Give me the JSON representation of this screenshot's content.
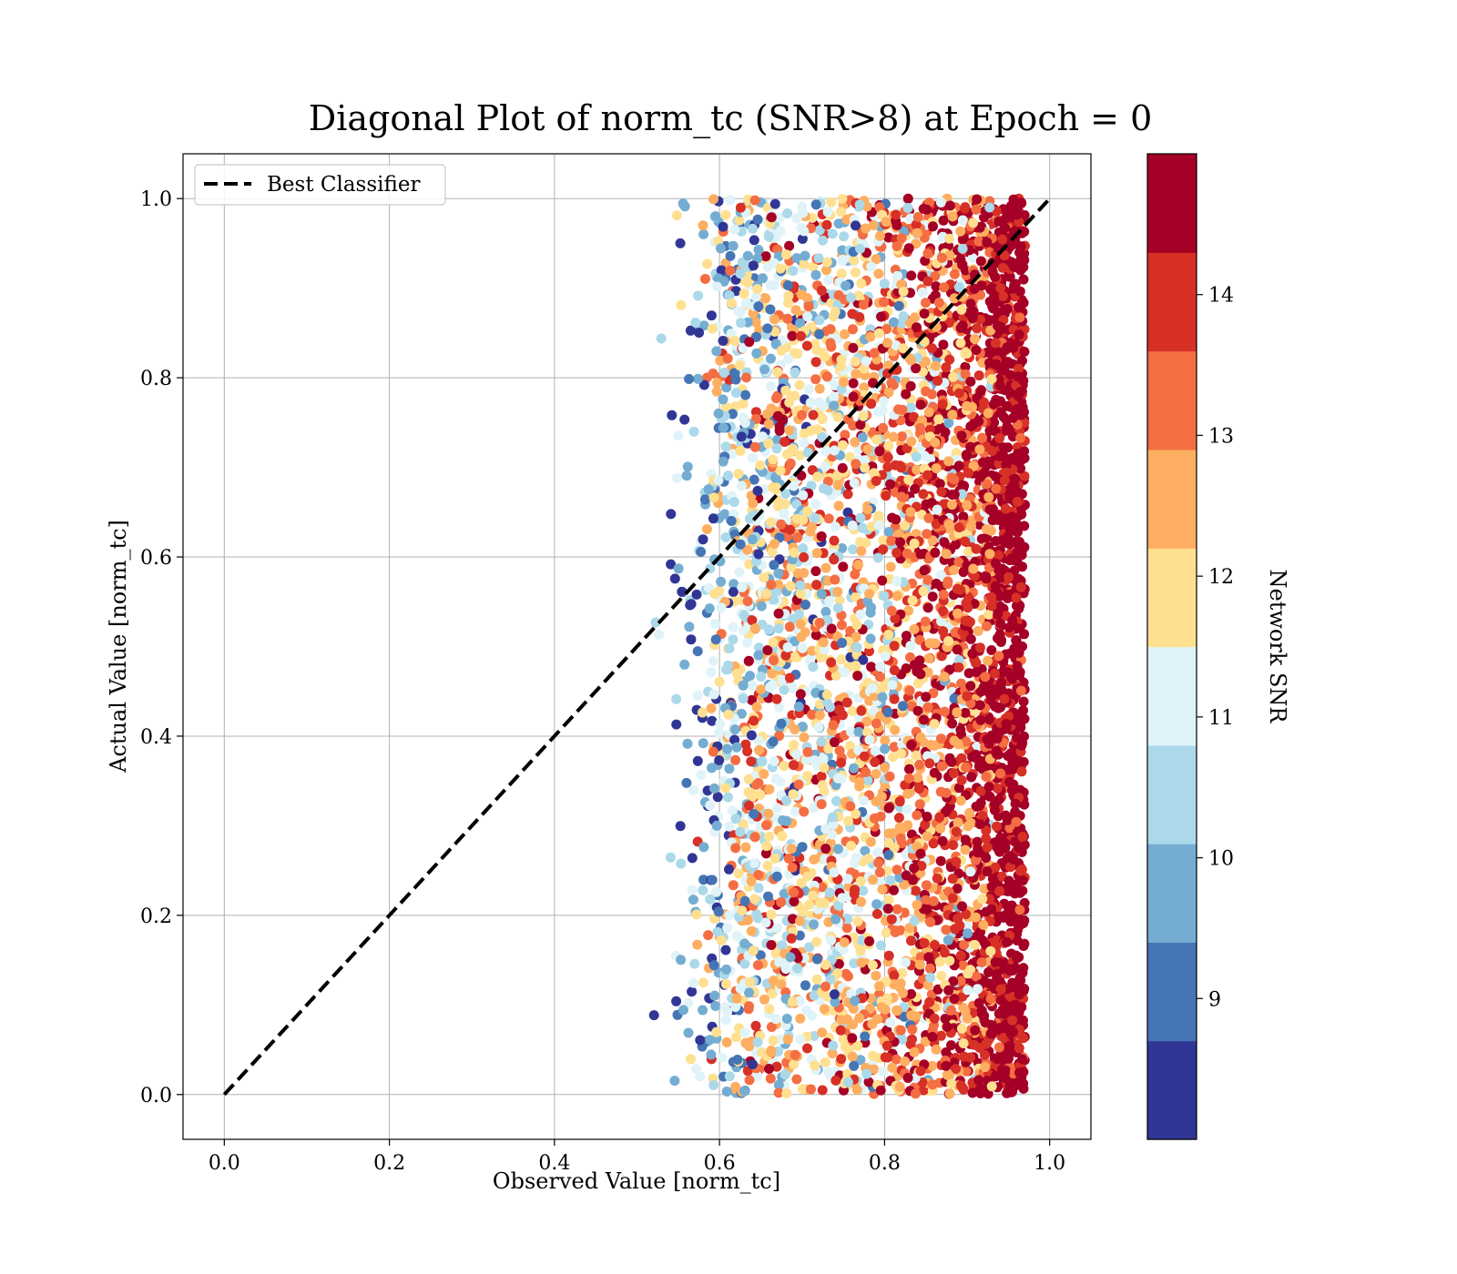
{
  "chart_data": {
    "type": "scatter",
    "title": "Diagonal Plot of norm_tc (SNR>8) at Epoch = 0",
    "xlabel": "Observed Value [norm_tc]",
    "ylabel": "Actual Value [norm_tc]",
    "xlim": [
      -0.05,
      1.05
    ],
    "ylim": [
      -0.05,
      1.05
    ],
    "xticks": [
      "0.0",
      "0.2",
      "0.4",
      "0.6",
      "0.8",
      "1.0"
    ],
    "yticks": [
      "0.0",
      "0.2",
      "0.4",
      "0.6",
      "0.8",
      "1.0"
    ],
    "grid": true,
    "legend": {
      "position": "upper-left",
      "entries": [
        {
          "label": "Best Classifier",
          "style": "dashed",
          "color": "#000000"
        }
      ]
    },
    "reference_line": {
      "name": "Best Classifier",
      "x": [
        0,
        1
      ],
      "y": [
        0,
        1
      ]
    },
    "points_description_range": {
      "x": [
        0.52,
        0.97
      ],
      "y": [
        0.0,
        1.0
      ]
    },
    "density_profile": {
      "x_centers": [
        0.54,
        0.58,
        0.62,
        0.66,
        0.7,
        0.74,
        0.78,
        0.82,
        0.86,
        0.9,
        0.94,
        0.96
      ],
      "relative_density": [
        0.03,
        0.35,
        0.85,
        0.95,
        1.0,
        1.0,
        1.0,
        1.1,
        1.3,
        1.6,
        2.2,
        2.5
      ]
    },
    "snr_by_x": {
      "x_centers": [
        0.56,
        0.6,
        0.65,
        0.7,
        0.75,
        0.8,
        0.85,
        0.9,
        0.95
      ],
      "mean_snr": [
        9.5,
        10.6,
        11.4,
        11.8,
        12.0,
        12.6,
        13.3,
        14.0,
        14.6
      ]
    },
    "colorbar": {
      "label": "Network SNR",
      "range": [
        8,
        15
      ],
      "levels": [
        8,
        8.7,
        9.4,
        10.1,
        10.8,
        11.5,
        12.2,
        12.9,
        13.6,
        14.3,
        15.0
      ],
      "colors": [
        "#313695",
        "#4575b4",
        "#74add1",
        "#abd9e9",
        "#e0f3f8",
        "#fee090",
        "#fdae61",
        "#f46d43",
        "#d73027",
        "#a50026"
      ],
      "ticks": [
        "9",
        "10",
        "11",
        "12",
        "13",
        "14"
      ]
    }
  }
}
